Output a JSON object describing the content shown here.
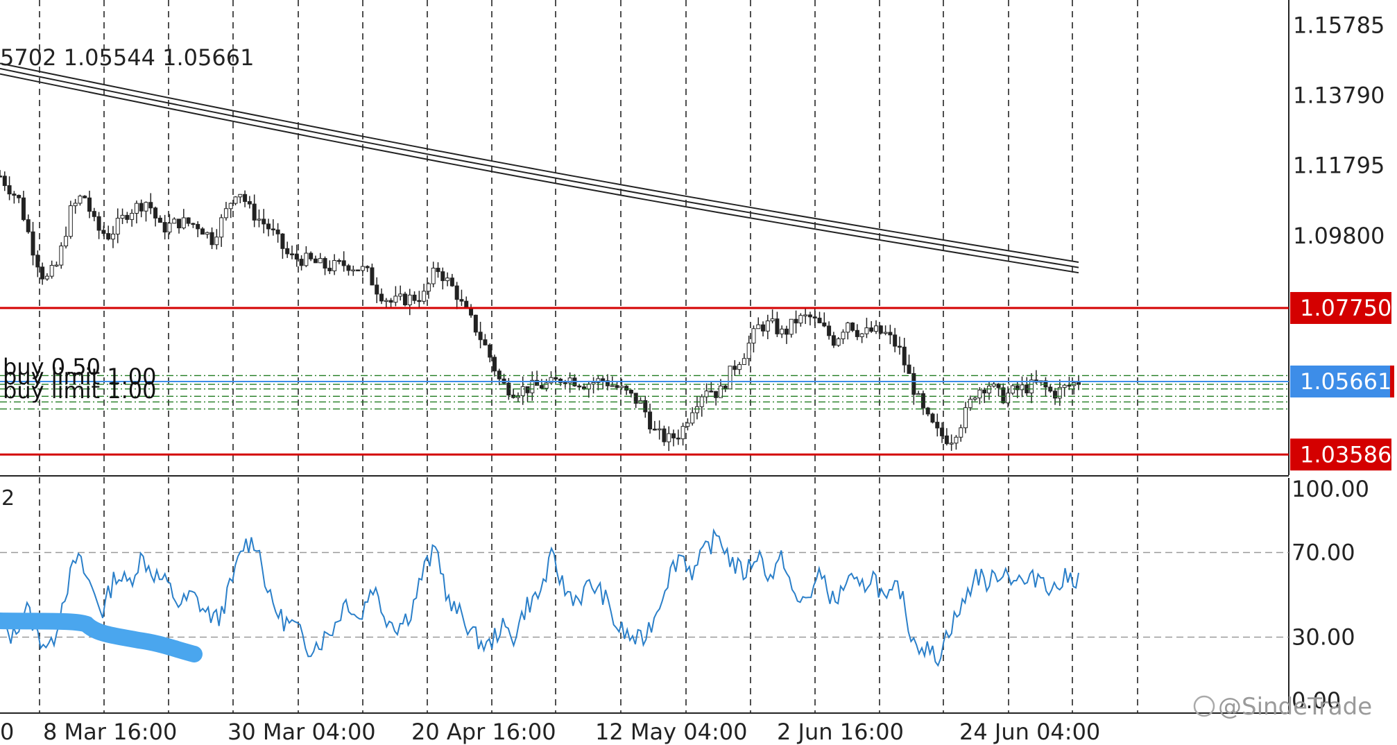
{
  "chart_data": [
    {
      "type": "candlestick",
      "panel": "price",
      "ohlc_readout": "5702 1.05544 1.05661",
      "y_ticks": [
        "1.15785",
        "1.13790",
        "1.11795",
        "1.09800"
      ],
      "ylim": [
        1.03,
        1.165
      ],
      "horizontal_levels": [
        {
          "label": "1.07750",
          "value": 1.0775,
          "color": "#d40000"
        },
        {
          "label": "1.05661",
          "value": 1.05661,
          "color": "#3d8de8",
          "current_price": true
        },
        {
          "label": "1.03586",
          "value": 1.03586,
          "color": "#d40000"
        }
      ],
      "pending_orders": [
        {
          "label": "buy 0.50",
          "value": 1.0605
        },
        {
          "label": "buy limit 1.00",
          "value": 1.0578
        },
        {
          "label": "buy limit 1.00",
          "value": 1.0538
        }
      ],
      "order_dash_levels": [
        1.0583,
        1.0558,
        1.0545,
        1.0524,
        1.0508,
        1.0488
      ],
      "moving_average_band": {
        "start": [
          1.147,
          1.1455,
          1.144
        ],
        "end": [
          1.0905,
          1.089,
          1.0875
        ]
      },
      "price_path": [
        [
          0.0,
          1.115
        ],
        [
          0.03,
          1.108
        ],
        [
          0.05,
          1.095
        ],
        [
          0.07,
          1.085
        ],
        [
          0.09,
          1.09
        ],
        [
          0.11,
          1.105
        ],
        [
          0.13,
          1.11
        ],
        [
          0.15,
          1.1
        ],
        [
          0.17,
          1.098
        ],
        [
          0.2,
          1.105
        ],
        [
          0.23,
          1.108
        ],
        [
          0.25,
          1.1
        ],
        [
          0.28,
          1.102
        ],
        [
          0.31,
          1.101
        ],
        [
          0.33,
          1.097
        ],
        [
          0.35,
          1.104
        ],
        [
          0.37,
          1.112
        ],
        [
          0.39,
          1.105
        ],
        [
          0.42,
          1.1
        ],
        [
          0.45,
          1.092
        ],
        [
          0.48,
          1.091
        ],
        [
          0.51,
          1.089
        ],
        [
          0.54,
          1.09
        ],
        [
          0.57,
          1.088
        ],
        [
          0.59,
          1.082
        ],
        [
          0.61,
          1.079
        ],
        [
          0.63,
          1.08
        ],
        [
          0.66,
          1.081
        ],
        [
          0.68,
          1.089
        ],
        [
          0.71,
          1.082
        ],
        [
          0.72,
          1.078
        ],
        [
          0.74,
          1.072
        ],
        [
          0.76,
          1.065
        ],
        [
          0.78,
          1.056
        ],
        [
          0.8,
          1.054
        ],
        [
          0.83,
          1.055
        ],
        [
          0.86,
          1.056
        ],
        [
          0.88,
          1.058
        ],
        [
          0.91,
          1.056
        ],
        [
          0.94,
          1.057
        ],
        [
          0.97,
          1.054
        ],
        [
          1.0,
          1.05
        ],
        [
          1.02,
          1.042
        ],
        [
          1.04,
          1.04
        ],
        [
          1.06,
          1.042
        ],
        [
          1.08,
          1.05
        ],
        [
          1.1,
          1.055
        ],
        [
          1.12,
          1.053
        ],
        [
          1.14,
          1.06
        ],
        [
          1.16,
          1.065
        ],
        [
          1.18,
          1.072
        ],
        [
          1.2,
          1.073
        ],
        [
          1.22,
          1.07
        ],
        [
          1.24,
          1.074
        ],
        [
          1.26,
          1.075
        ],
        [
          1.28,
          1.072
        ],
        [
          1.3,
          1.068
        ],
        [
          1.32,
          1.074
        ],
        [
          1.34,
          1.07
        ],
        [
          1.36,
          1.071
        ],
        [
          1.38,
          1.07
        ],
        [
          1.4,
          1.066
        ],
        [
          1.42,
          1.056
        ],
        [
          1.44,
          1.047
        ],
        [
          1.46,
          1.042
        ],
        [
          1.48,
          1.04
        ],
        [
          1.5,
          1.046
        ],
        [
          1.52,
          1.054
        ],
        [
          1.54,
          1.056
        ],
        [
          1.56,
          1.052
        ],
        [
          1.58,
          1.054
        ],
        [
          1.6,
          1.055
        ],
        [
          1.62,
          1.056
        ],
        [
          1.64,
          1.053
        ],
        [
          1.66,
          1.055
        ],
        [
          1.68,
          1.0566
        ]
      ],
      "time_labels": [
        "0",
        "8 Mar 16:00",
        "30 Mar 04:00",
        "20 Apr 16:00",
        "12 May 04:00",
        "2 Jun 16:00",
        "24 Jun 04:00"
      ]
    },
    {
      "type": "line",
      "panel": "oscillator",
      "indicator_label": "2",
      "y_ticks": [
        "100.00",
        "70.00",
        "30.00",
        "0.00"
      ],
      "ylim": [
        0,
        100
      ],
      "levels": [
        70,
        30
      ],
      "color": "#2a7fc9",
      "series_path": [
        [
          0.0,
          35
        ],
        [
          0.02,
          30
        ],
        [
          0.04,
          45
        ],
        [
          0.06,
          30
        ],
        [
          0.08,
          25
        ],
        [
          0.1,
          50
        ],
        [
          0.12,
          68
        ],
        [
          0.14,
          55
        ],
        [
          0.16,
          42
        ],
        [
          0.18,
          60
        ],
        [
          0.2,
          55
        ],
        [
          0.22,
          68
        ],
        [
          0.24,
          60
        ],
        [
          0.26,
          55
        ],
        [
          0.28,
          45
        ],
        [
          0.3,
          50
        ],
        [
          0.32,
          42
        ],
        [
          0.34,
          38
        ],
        [
          0.36,
          55
        ],
        [
          0.38,
          74
        ],
        [
          0.4,
          75
        ],
        [
          0.42,
          48
        ],
        [
          0.44,
          38
        ],
        [
          0.46,
          35
        ],
        [
          0.48,
          25
        ],
        [
          0.5,
          28
        ],
        [
          0.52,
          35
        ],
        [
          0.54,
          48
        ],
        [
          0.56,
          38
        ],
        [
          0.58,
          55
        ],
        [
          0.6,
          40
        ],
        [
          0.62,
          35
        ],
        [
          0.64,
          42
        ],
        [
          0.66,
          62
        ],
        [
          0.68,
          72
        ],
        [
          0.7,
          45
        ],
        [
          0.72,
          40
        ],
        [
          0.74,
          30
        ],
        [
          0.76,
          25
        ],
        [
          0.78,
          35
        ],
        [
          0.8,
          30
        ],
        [
          0.82,
          45
        ],
        [
          0.84,
          50
        ],
        [
          0.86,
          68
        ],
        [
          0.88,
          52
        ],
        [
          0.9,
          48
        ],
        [
          0.92,
          55
        ],
        [
          0.94,
          50
        ],
        [
          0.96,
          35
        ],
        [
          0.98,
          30
        ],
        [
          1.0,
          28
        ],
        [
          1.02,
          40
        ],
        [
          1.04,
          58
        ],
        [
          1.06,
          70
        ],
        [
          1.08,
          60
        ],
        [
          1.1,
          72
        ],
        [
          1.12,
          78
        ],
        [
          1.14,
          65
        ],
        [
          1.16,
          60
        ],
        [
          1.18,
          70
        ],
        [
          1.2,
          58
        ],
        [
          1.22,
          68
        ],
        [
          1.24,
          45
        ],
        [
          1.26,
          50
        ],
        [
          1.28,
          60
        ],
        [
          1.3,
          45
        ],
        [
          1.32,
          58
        ],
        [
          1.34,
          52
        ],
        [
          1.36,
          60
        ],
        [
          1.38,
          45
        ],
        [
          1.4,
          55
        ],
        [
          1.42,
          30
        ],
        [
          1.44,
          25
        ],
        [
          1.46,
          20
        ],
        [
          1.48,
          35
        ],
        [
          1.5,
          45
        ],
        [
          1.52,
          60
        ],
        [
          1.54,
          55
        ],
        [
          1.56,
          62
        ],
        [
          1.58,
          58
        ],
        [
          1.6,
          55
        ],
        [
          1.62,
          60
        ],
        [
          1.64,
          52
        ],
        [
          1.66,
          58
        ],
        [
          1.68,
          58
        ]
      ]
    }
  ],
  "watermark": {
    "text": "@SindeTrade"
  }
}
